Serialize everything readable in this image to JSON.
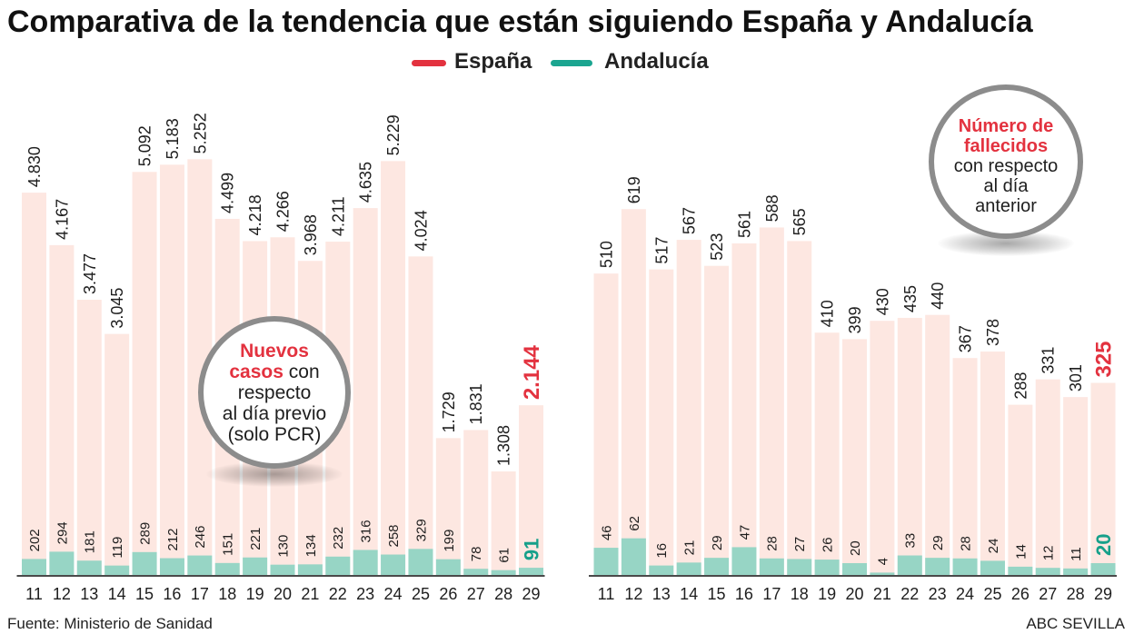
{
  "page": {
    "title": "Comparativa de la tendencia que están siguiendo España y Andalucía",
    "source": "Fuente: Ministerio de Sanidad",
    "credit": "ABC SEVILLA"
  },
  "legend": [
    {
      "name": "España",
      "color": "#e3323f"
    },
    {
      "name": "Andalucía",
      "color": "#1ba590"
    }
  ],
  "colors": {
    "spain_bar": "#fde7e1",
    "andalucia_bar": "#97d5c5",
    "spain_highlight": "#e3323f",
    "andalucia_highlight": "#16a08a",
    "label_text": "#1e1e1e",
    "axis": "#4a4a4a"
  },
  "chart_data": [
    {
      "type": "bar",
      "barmode": "overlay",
      "title": [
        {
          "hl": "Nuevos"
        },
        {
          "hl": "casos",
          "text": "con"
        },
        {
          "text": "respecto"
        },
        {
          "text": "al día previo"
        },
        {
          "text": "(solo PCR)"
        }
      ],
      "categories": [
        "11",
        "12",
        "13",
        "14",
        "15",
        "16",
        "17",
        "18",
        "19",
        "20",
        "21",
        "22",
        "23",
        "24",
        "25",
        "26",
        "27",
        "28",
        "29"
      ],
      "series": [
        {
          "name": "España",
          "values": [
            4830,
            4167,
            3477,
            3045,
            5092,
            5183,
            5252,
            4499,
            4218,
            4266,
            3968,
            4211,
            4635,
            5229,
            4024,
            1729,
            1831,
            1308,
            2144
          ]
        },
        {
          "name": "Andalucía",
          "values": [
            202,
            294,
            181,
            119,
            289,
            212,
            246,
            151,
            221,
            130,
            134,
            232,
            316,
            258,
            329,
            199,
            78,
            61,
            91
          ]
        }
      ],
      "ylim": [
        0,
        5600
      ],
      "grid": false
    },
    {
      "type": "bar",
      "barmode": "overlay",
      "title": [
        {
          "hl": "Número de"
        },
        {
          "hl": "fallecidos"
        },
        {
          "text": "con respecto"
        },
        {
          "text": "al día"
        },
        {
          "text": "anterior"
        }
      ],
      "categories": [
        "11",
        "12",
        "13",
        "14",
        "15",
        "16",
        "17",
        "18",
        "19",
        "20",
        "21",
        "22",
        "23",
        "24",
        "25",
        "26",
        "27",
        "28",
        "29"
      ],
      "series": [
        {
          "name": "España",
          "values": [
            510,
            619,
            517,
            567,
            523,
            561,
            588,
            565,
            410,
            399,
            430,
            435,
            440,
            367,
            378,
            288,
            331,
            301,
            325
          ]
        },
        {
          "name": "Andalucía",
          "values": [
            46,
            62,
            16,
            21,
            29,
            47,
            28,
            27,
            26,
            20,
            4,
            33,
            29,
            28,
            24,
            14,
            12,
            11,
            20
          ]
        }
      ],
      "ylim": [
        0,
        750
      ],
      "grid": false
    }
  ]
}
